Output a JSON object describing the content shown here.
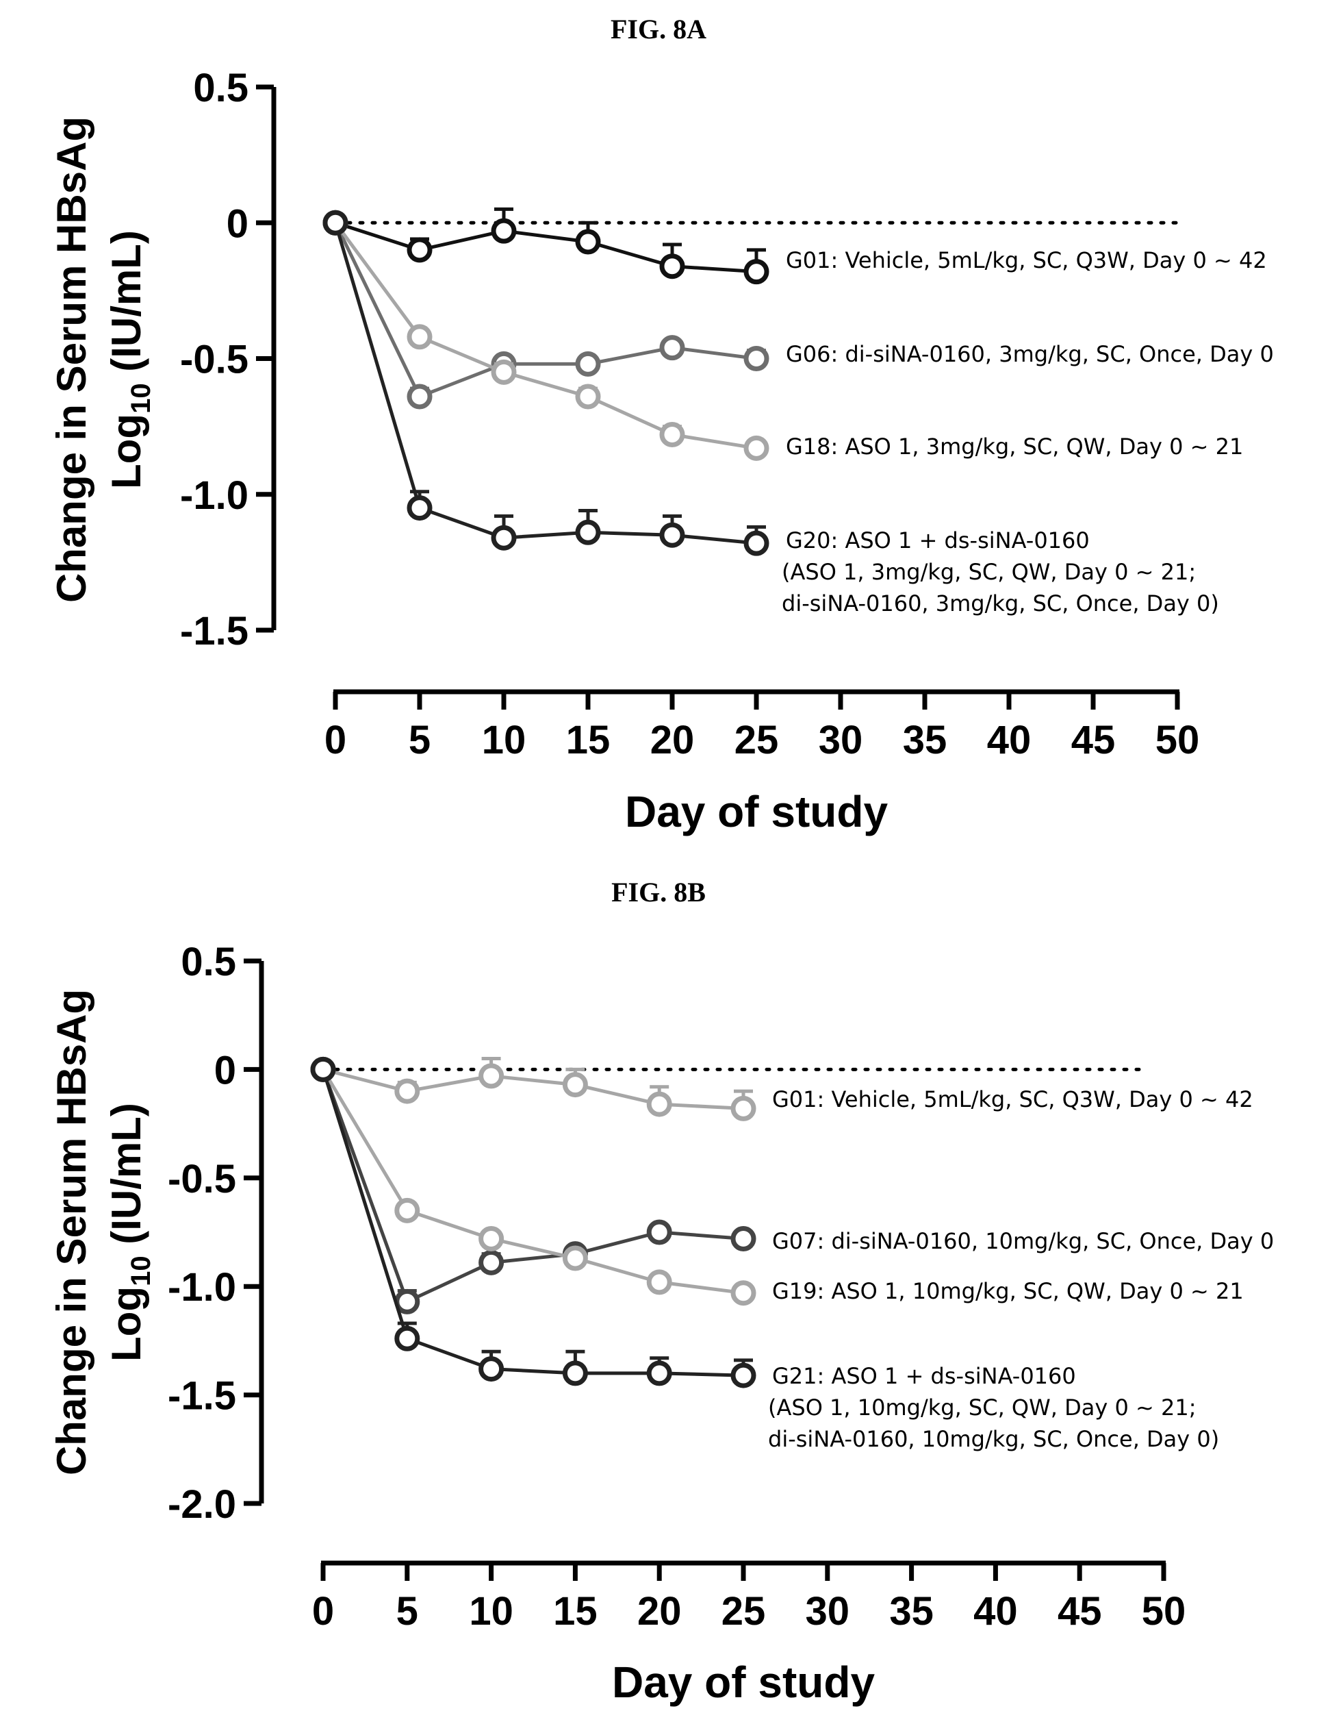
{
  "chart_data": [
    {
      "type": "line",
      "title": "FIG. 8A",
      "xlabel": "Day of study",
      "ylabel": {
        "line1": "Change in Serum HBsAg",
        "line2_prefix": "Log",
        "line2_subscript": "10",
        "line2_suffix": " (IU/mL)"
      },
      "xlim": [
        0,
        50
      ],
      "ylim": [
        -1.5,
        0.5
      ],
      "xticks": [
        0,
        5,
        10,
        15,
        20,
        25,
        30,
        35,
        40,
        45,
        50
      ],
      "xtick_labels": [
        "0",
        "5",
        "10",
        "15",
        "20",
        "25",
        "30",
        "35",
        "40",
        "45",
        "50"
      ],
      "yticks": [
        0.5,
        0,
        -0.5,
        -1.0,
        -1.5
      ],
      "ytick_labels": [
        "0.5",
        "0",
        "-0.5",
        "-1.0",
        "-1.5"
      ],
      "reference_line": {
        "y": 0,
        "style": "dotted",
        "x_end": 50
      },
      "x": [
        0,
        5,
        10,
        15,
        20,
        25
      ],
      "series": [
        {
          "name": "G01: Vehicle, 5mL/kg, SC, Q3W, Day 0 ~ 42",
          "color": "#111111",
          "values": [
            0,
            -0.1,
            -0.03,
            -0.07,
            -0.16,
            -0.18
          ],
          "error": [
            0,
            0.04,
            0.08,
            0.07,
            0.08,
            0.08
          ],
          "label_lines": [
            "G01: Vehicle, 5mL/kg, SC, Q3W, Day 0 ~ 42"
          ]
        },
        {
          "name": "G06: di-siNA-0160, 3mg/kg, SC, Once, Day 0",
          "color": "#6e6e6e",
          "values": [
            0,
            -0.64,
            -0.52,
            -0.52,
            -0.46,
            -0.5
          ],
          "error": [
            0,
            0.03,
            0.02,
            0.02,
            0.02,
            0.03
          ],
          "label_lines": [
            "G06: di-siNA-0160, 3mg/kg, SC, Once, Day 0"
          ]
        },
        {
          "name": "G18: ASO 1, 3mg/kg, SC, QW, Day 0 ~ 21",
          "color": "#a6a6a6",
          "values": [
            0,
            -0.42,
            -0.55,
            -0.64,
            -0.78,
            -0.83
          ],
          "error": [
            0,
            0.02,
            0.03,
            0.03,
            0.03,
            0.02
          ],
          "label_lines": [
            "G18: ASO 1, 3mg/kg, SC, QW, Day 0 ~ 21"
          ]
        },
        {
          "name": "G20: ASO 1 + ds-siNA-0160",
          "color": "#222222",
          "values": [
            0,
            -1.05,
            -1.16,
            -1.14,
            -1.15,
            -1.18
          ],
          "error": [
            0,
            0.06,
            0.08,
            0.08,
            0.07,
            0.06
          ],
          "label_lines": [
            "G20: ASO 1 + ds-siNA-0160",
            "(ASO 1, 3mg/kg, SC, QW, Day 0 ~ 21;",
            "di-siNA-0160, 3mg/kg, SC, Once, Day 0)"
          ]
        }
      ]
    },
    {
      "type": "line",
      "title": "FIG. 8B",
      "xlabel": "Day of study",
      "ylabel": {
        "line1": "Change in Serum HBsAg",
        "line2_prefix": "Log",
        "line2_subscript": "10",
        "line2_suffix": " (IU/mL)"
      },
      "xlim": [
        0,
        50
      ],
      "ylim": [
        -2.0,
        0.5
      ],
      "xticks": [
        0,
        5,
        10,
        15,
        20,
        25,
        30,
        35,
        40,
        45,
        50
      ],
      "xtick_labels": [
        "0",
        "5",
        "10",
        "15",
        "20",
        "25",
        "30",
        "35",
        "40",
        "45",
        "50"
      ],
      "yticks": [
        0.5,
        0,
        -0.5,
        -1.0,
        -1.5,
        -2.0
      ],
      "ytick_labels": [
        "0.5",
        "0",
        "-0.5",
        "-1.0",
        "-1.5",
        "-2.0"
      ],
      "reference_line": {
        "y": 0,
        "style": "dotted",
        "x_end": 49
      },
      "x": [
        0,
        5,
        10,
        15,
        20,
        25
      ],
      "series": [
        {
          "name": "G01: Vehicle, 5mL/kg, SC, Q3W, Day 0 ~ 42",
          "color": "#a6a6a6",
          "values": [
            0,
            -0.1,
            -0.03,
            -0.07,
            -0.16,
            -0.18
          ],
          "error": [
            0,
            0.04,
            0.08,
            0.07,
            0.08,
            0.08
          ],
          "label_lines": [
            "G01: Vehicle, 5mL/kg, SC, Q3W, Day 0 ~ 42"
          ]
        },
        {
          "name": "G07: di-siNA-0160, 10mg/kg, SC, Once, Day 0",
          "color": "#444444",
          "values": [
            0,
            -1.07,
            -0.89,
            -0.85,
            -0.75,
            -0.78
          ],
          "error": [
            0,
            0.05,
            0.04,
            0.03,
            0.03,
            0.03
          ],
          "label_lines": [
            "G07: di-siNA-0160, 10mg/kg, SC, Once, Day 0"
          ]
        },
        {
          "name": "G19: ASO 1, 10mg/kg, SC, QW, Day 0 ~ 21",
          "color": "#a6a6a6",
          "values": [
            0,
            -0.65,
            -0.78,
            -0.87,
            -0.98,
            -1.03
          ],
          "error": [
            0,
            0.03,
            0.03,
            0.03,
            0.03,
            0.03
          ],
          "label_lines": [
            "G19: ASO 1, 10mg/kg, SC, QW, Day 0 ~ 21"
          ]
        },
        {
          "name": "G21: ASO 1 + ds-siNA-0160",
          "color": "#222222",
          "values": [
            0,
            -1.24,
            -1.38,
            -1.4,
            -1.4,
            -1.41
          ],
          "error": [
            0,
            0.07,
            0.08,
            0.1,
            0.07,
            0.07
          ],
          "label_lines": [
            "G21: ASO 1 + ds-siNA-0160",
            "(ASO 1, 10mg/kg, SC, QW, Day 0 ~ 21;",
            "di-siNA-0160, 10mg/kg, SC, Once, Day 0)"
          ]
        }
      ]
    }
  ]
}
